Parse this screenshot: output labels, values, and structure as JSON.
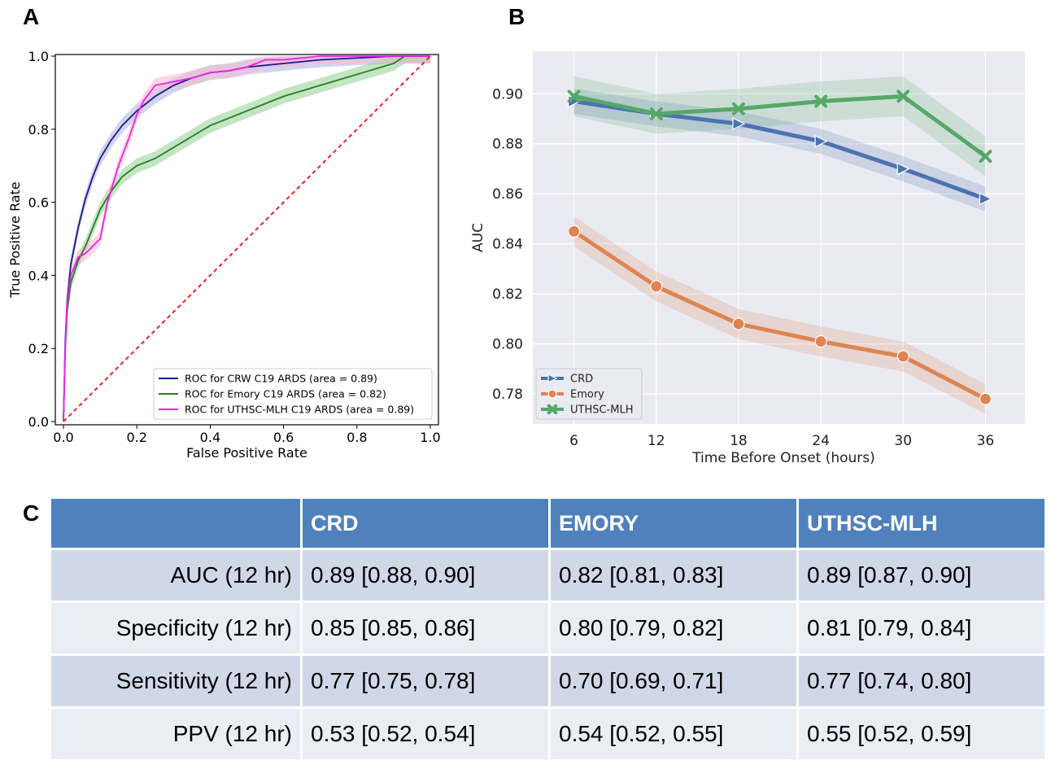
{
  "panels": {
    "a": "A",
    "b": "B",
    "c": "C"
  },
  "chart_data": [
    {
      "type": "line",
      "panel": "A",
      "xlabel": "False Positive Rate",
      "ylabel": "True Positive Rate",
      "xlim": [
        0,
        1
      ],
      "ylim": [
        0,
        1
      ],
      "xticks": [
        "0.0",
        "0.2",
        "0.4",
        "0.6",
        "0.8",
        "1.0"
      ],
      "yticks": [
        "0.0",
        "0.2",
        "0.4",
        "0.6",
        "0.8",
        "1.0"
      ],
      "grid": false,
      "legend_position": "lower-right",
      "series": [
        {
          "name": "ROC for CRW C19 ARDS (area = 0.89)",
          "color": "#1a1a8c",
          "band": "#aab0e0",
          "x": [
            0,
            0.005,
            0.01,
            0.02,
            0.04,
            0.06,
            0.08,
            0.1,
            0.13,
            0.16,
            0.2,
            0.25,
            0.3,
            0.35,
            0.4,
            0.45,
            0.5,
            0.6,
            0.7,
            0.8,
            0.9,
            1.0
          ],
          "y": [
            0,
            0.22,
            0.33,
            0.43,
            0.53,
            0.61,
            0.67,
            0.72,
            0.77,
            0.81,
            0.85,
            0.89,
            0.92,
            0.94,
            0.955,
            0.96,
            0.97,
            0.98,
            0.99,
            0.995,
            1.0,
            1.0
          ]
        },
        {
          "name": "ROC for Emory C19 ARDS (area = 0.82)",
          "color": "#2a7a2a",
          "band": "#8fd08f",
          "x": [
            0,
            0.005,
            0.01,
            0.02,
            0.04,
            0.06,
            0.08,
            0.1,
            0.13,
            0.16,
            0.2,
            0.25,
            0.3,
            0.35,
            0.4,
            0.45,
            0.5,
            0.55,
            0.6,
            0.7,
            0.8,
            0.9,
            0.93,
            1.0
          ],
          "y": [
            0,
            0.2,
            0.3,
            0.38,
            0.44,
            0.48,
            0.53,
            0.58,
            0.63,
            0.67,
            0.7,
            0.72,
            0.75,
            0.78,
            0.81,
            0.83,
            0.85,
            0.87,
            0.89,
            0.92,
            0.95,
            0.98,
            1.0,
            1.0
          ]
        },
        {
          "name": "ROC for UTHSC-MLH C19 ARDS (area = 0.89)",
          "color": "#ee22ee",
          "band": "#f5b8cc",
          "x": [
            0,
            0.005,
            0.01,
            0.02,
            0.04,
            0.06,
            0.08,
            0.1,
            0.12,
            0.15,
            0.18,
            0.2,
            0.22,
            0.25,
            0.3,
            0.35,
            0.4,
            0.45,
            0.5,
            0.55,
            0.6,
            0.7,
            0.8,
            0.9,
            1.0
          ],
          "y": [
            0,
            0.2,
            0.32,
            0.4,
            0.45,
            0.46,
            0.48,
            0.5,
            0.6,
            0.7,
            0.78,
            0.84,
            0.88,
            0.92,
            0.93,
            0.94,
            0.955,
            0.96,
            0.97,
            0.99,
            0.99,
            1.0,
            1.0,
            1.0,
            1.0
          ]
        }
      ],
      "diagonal": {
        "color": "#ee2222",
        "style": "dashed"
      }
    },
    {
      "type": "line",
      "panel": "B",
      "xlabel": "Time Before Onset (hours)",
      "ylabel": "AUC",
      "x": [
        6,
        12,
        18,
        24,
        30,
        36
      ],
      "xlim": [
        3,
        39
      ],
      "ylim": [
        0.768,
        0.917
      ],
      "yticks": [
        "0.78",
        "0.80",
        "0.82",
        "0.84",
        "0.86",
        "0.88",
        "0.90"
      ],
      "grid": true,
      "legend_position": "lower-left",
      "series": [
        {
          "name": "CRD",
          "color": "#4c72b0",
          "marker": "triangle-right",
          "values": [
            0.897,
            0.892,
            0.888,
            0.881,
            0.87,
            0.858
          ],
          "ci": 0.005
        },
        {
          "name": "Emory",
          "color": "#dd8452",
          "marker": "circle",
          "values": [
            0.845,
            0.823,
            0.808,
            0.801,
            0.795,
            0.778
          ],
          "ci": 0.006
        },
        {
          "name": "UTHSC-MLH",
          "color": "#55a868",
          "marker": "x",
          "values": [
            0.899,
            0.892,
            0.894,
            0.897,
            0.899,
            0.875
          ],
          "ci": 0.008
        }
      ]
    }
  ],
  "table": {
    "columns": [
      "",
      "CRD",
      "EMORY",
      "UTHSC-MLH"
    ],
    "rows": [
      [
        "AUC (12 hr)",
        "0.89 [0.88, 0.90]",
        "0.82 [0.81, 0.83]",
        "0.89 [0.87, 0.90]"
      ],
      [
        "Specificity (12 hr)",
        "0.85 [0.85, 0.86]",
        "0.80 [0.79, 0.82]",
        "0.81 [0.79, 0.84]"
      ],
      [
        "Sensitivity (12 hr)",
        "0.77 [0.75, 0.78]",
        "0.70 [0.69, 0.71]",
        "0.77 [0.74, 0.80]"
      ],
      [
        "PPV (12 hr)",
        "0.53 [0.52, 0.54]",
        "0.54 [0.52, 0.55]",
        "0.55 [0.52, 0.59]"
      ]
    ]
  }
}
